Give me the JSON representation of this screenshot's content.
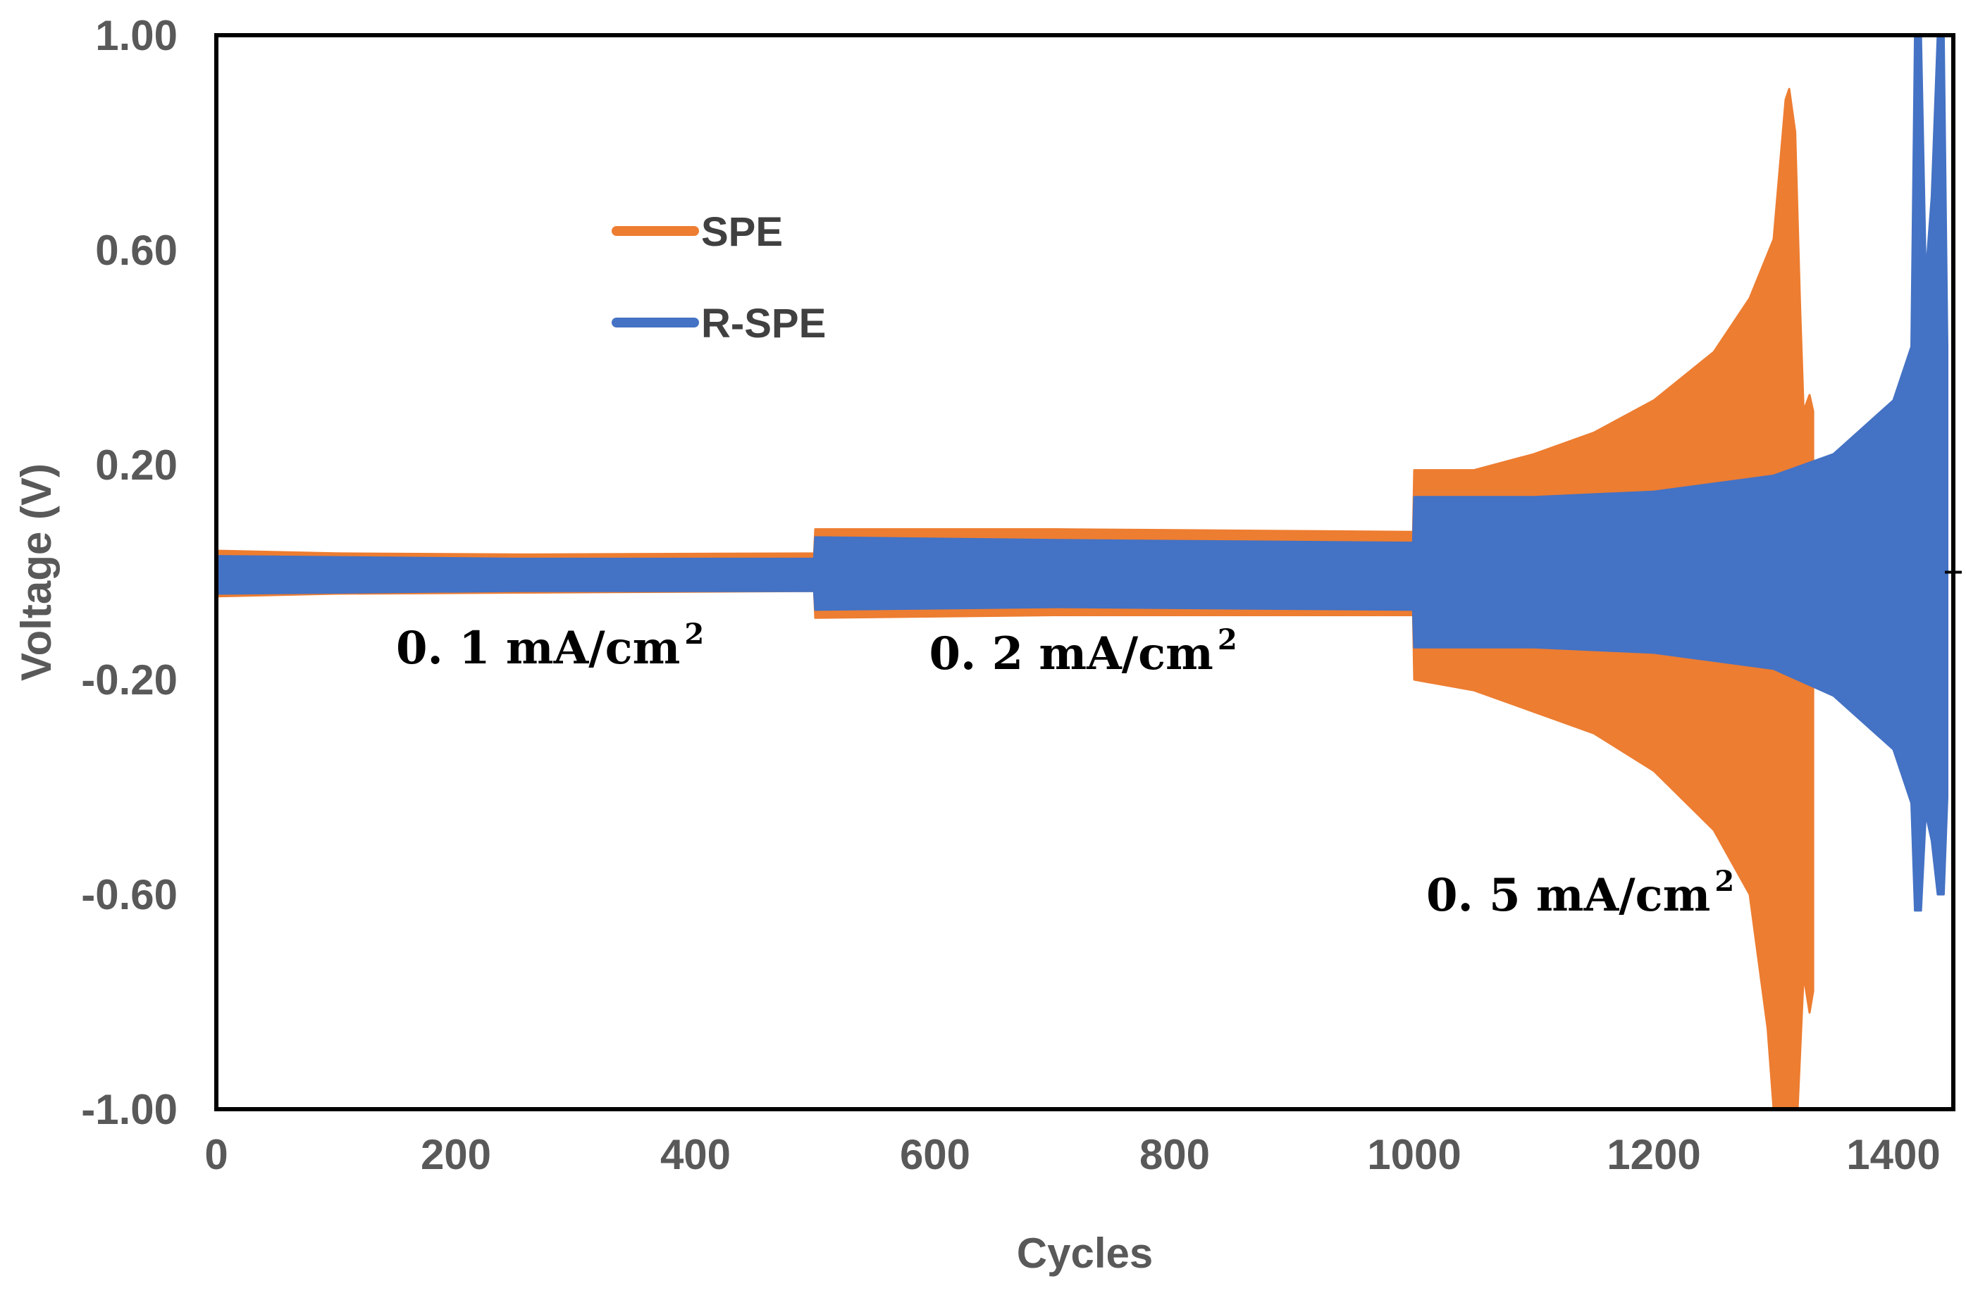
{
  "chart_data": {
    "type": "line",
    "title": "",
    "xlabel": "Cycles",
    "ylabel": "Voltage (V)",
    "xlim": [
      0,
      1450
    ],
    "ylim": [
      -1.0,
      1.0
    ],
    "x_ticks": [
      0,
      200,
      400,
      600,
      800,
      1000,
      1200,
      1400
    ],
    "x_tick_labels": [
      "0",
      "200",
      "400",
      "600",
      "800",
      "1000",
      "1200",
      "1400"
    ],
    "y_ticks": [
      1.0,
      0.6,
      0.2,
      -0.2,
      -0.6,
      -1.0
    ],
    "y_tick_labels": [
      "1.00",
      "0.60",
      "0.20",
      "-0.20",
      "-0.60",
      "-1.00"
    ],
    "legend_position": "upper-left",
    "series": [
      {
        "name": "SPE",
        "color": "#ED7D31",
        "envelope_upper": [
          [
            0,
            0.04
          ],
          [
            100,
            0.035
          ],
          [
            250,
            0.033
          ],
          [
            499,
            0.035
          ],
          [
            500,
            0.08
          ],
          [
            700,
            0.08
          ],
          [
            999,
            0.075
          ],
          [
            1000,
            0.19
          ],
          [
            1050,
            0.19
          ],
          [
            1100,
            0.22
          ],
          [
            1150,
            0.26
          ],
          [
            1200,
            0.32
          ],
          [
            1250,
            0.41
          ],
          [
            1280,
            0.51
          ],
          [
            1300,
            0.62
          ],
          [
            1305,
            0.75
          ],
          [
            1310,
            0.88
          ],
          [
            1313,
            0.9
          ],
          [
            1318,
            0.82
          ],
          [
            1322,
            0.5
          ],
          [
            1325,
            0.3
          ],
          [
            1330,
            0.33
          ],
          [
            1333,
            0.3
          ]
        ],
        "envelope_lower": [
          [
            0,
            -0.045
          ],
          [
            100,
            -0.04
          ],
          [
            250,
            -0.038
          ],
          [
            499,
            -0.035
          ],
          [
            500,
            -0.085
          ],
          [
            700,
            -0.08
          ],
          [
            999,
            -0.08
          ],
          [
            1000,
            -0.2
          ],
          [
            1050,
            -0.22
          ],
          [
            1100,
            -0.26
          ],
          [
            1150,
            -0.3
          ],
          [
            1200,
            -0.37
          ],
          [
            1250,
            -0.48
          ],
          [
            1280,
            -0.6
          ],
          [
            1295,
            -0.85
          ],
          [
            1300,
            -1.0
          ],
          [
            1320,
            -1.0
          ],
          [
            1325,
            -0.75
          ],
          [
            1330,
            -0.82
          ],
          [
            1333,
            -0.78
          ]
        ]
      },
      {
        "name": "R-SPE",
        "color": "#4472C4",
        "envelope_upper": [
          [
            0,
            0.03
          ],
          [
            250,
            0.025
          ],
          [
            499,
            0.025
          ],
          [
            500,
            0.065
          ],
          [
            700,
            0.06
          ],
          [
            999,
            0.055
          ],
          [
            1000,
            0.14
          ],
          [
            1100,
            0.14
          ],
          [
            1200,
            0.15
          ],
          [
            1300,
            0.18
          ],
          [
            1350,
            0.22
          ],
          [
            1400,
            0.32
          ],
          [
            1415,
            0.42
          ],
          [
            1418,
            1.0
          ],
          [
            1423,
            1.0
          ],
          [
            1427,
            0.55
          ],
          [
            1432,
            0.7
          ],
          [
            1437,
            1.0
          ],
          [
            1442,
            1.0
          ],
          [
            1445,
            0.42
          ]
        ],
        "envelope_lower": [
          [
            0,
            -0.04
          ],
          [
            250,
            -0.035
          ],
          [
            499,
            -0.035
          ],
          [
            500,
            -0.07
          ],
          [
            700,
            -0.065
          ],
          [
            999,
            -0.07
          ],
          [
            1000,
            -0.14
          ],
          [
            1100,
            -0.14
          ],
          [
            1200,
            -0.15
          ],
          [
            1300,
            -0.18
          ],
          [
            1350,
            -0.23
          ],
          [
            1400,
            -0.33
          ],
          [
            1415,
            -0.43
          ],
          [
            1418,
            -0.63
          ],
          [
            1423,
            -0.63
          ],
          [
            1427,
            -0.45
          ],
          [
            1432,
            -0.5
          ],
          [
            1437,
            -0.6
          ],
          [
            1442,
            -0.6
          ],
          [
            1445,
            -0.42
          ]
        ]
      }
    ],
    "annotations": [
      {
        "text": "0. 1 mA/cm",
        "sup": "2",
        "x": 150,
        "y": -0.17
      },
      {
        "text": "0. 2 mA/cm",
        "sup": "2",
        "x": 595,
        "y": -0.18
      },
      {
        "text": "0. 5 mA/cm",
        "sup": "2",
        "x": 1010,
        "y": -0.63
      }
    ]
  }
}
